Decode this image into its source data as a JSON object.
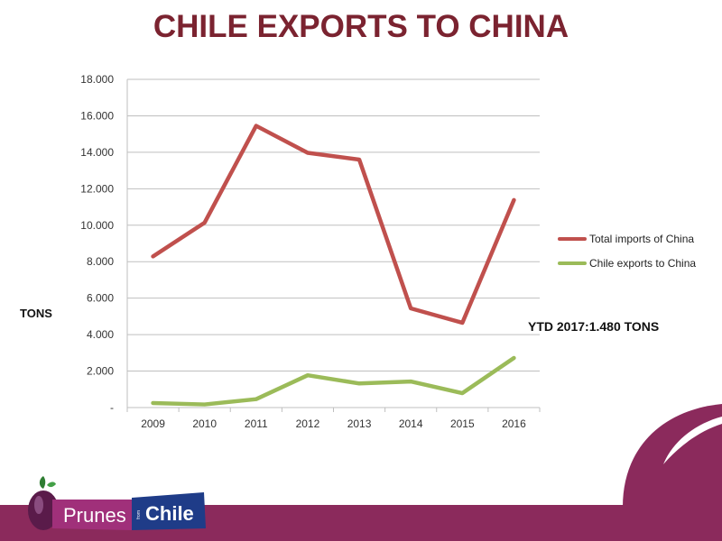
{
  "title": "CHILE EXPORTS TO CHINA",
  "chart_data": {
    "type": "line",
    "title": "CHILE EXPORTS TO CHINA",
    "ylabel": "TONS",
    "xlabel": "",
    "categories": [
      "2009",
      "2010",
      "2011",
      "2012",
      "2013",
      "2014",
      "2015",
      "2016"
    ],
    "ylim": [
      0,
      18000
    ],
    "yticks": [
      {
        "value": 0,
        "label": "-"
      },
      {
        "value": 2000,
        "label": "2.000"
      },
      {
        "value": 4000,
        "label": "4.000"
      },
      {
        "value": 6000,
        "label": "6.000"
      },
      {
        "value": 8000,
        "label": "8.000"
      },
      {
        "value": 10000,
        "label": "10.000"
      },
      {
        "value": 12000,
        "label": "12.000"
      },
      {
        "value": 14000,
        "label": "14.000"
      },
      {
        "value": 16000,
        "label": "16.000"
      },
      {
        "value": 18000,
        "label": "18.000"
      }
    ],
    "grid": true,
    "legend_position": "right",
    "series": [
      {
        "name": "Total imports of China",
        "color": "#c0504d",
        "values": [
          8290,
          10140,
          15450,
          13970,
          13600,
          5440,
          4650,
          11380
        ]
      },
      {
        "name": "Chile exports to China",
        "color": "#9bbb59",
        "values": [
          250,
          170,
          460,
          1770,
          1320,
          1430,
          790,
          2720
        ]
      }
    ],
    "annotation": "YTD 2017:1.480 TONS"
  },
  "logo": {
    "text_left": "Prunes",
    "text_small": "from",
    "text_right": "Chile"
  },
  "colors": {
    "title": "#7b2330",
    "brand_band": "#8b2a5c",
    "logo_blue": "#1f3c88"
  }
}
